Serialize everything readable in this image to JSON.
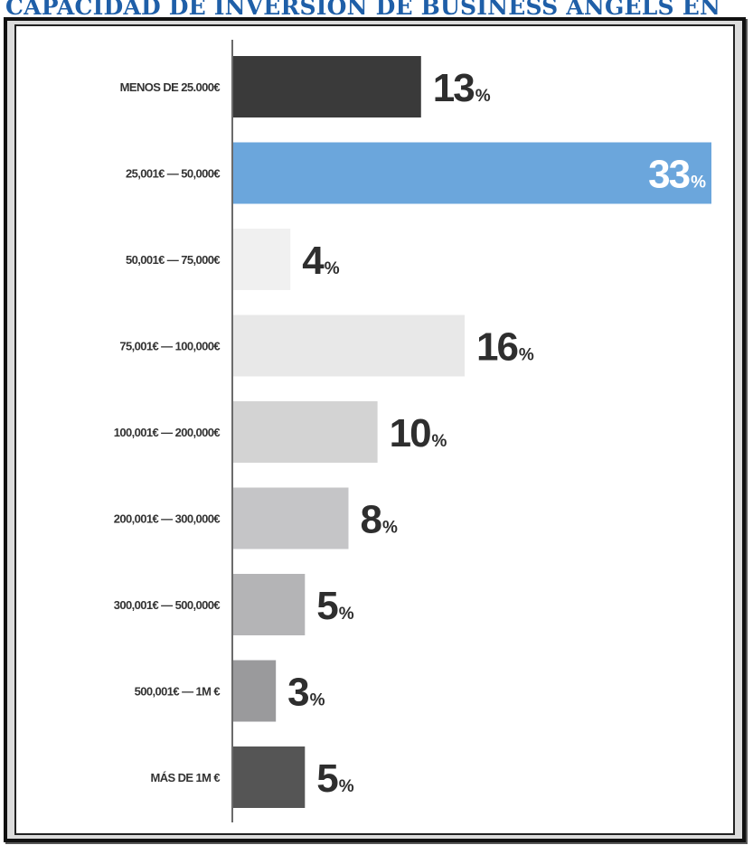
{
  "title": "CAPACIDAD DE INVERSIÓN DE BUSINESS ANGELS EN",
  "chart_data": {
    "type": "bar",
    "orientation": "horizontal",
    "unit": "%",
    "categories": [
      "MENOS DE 25.000€",
      "25,001€ — 50,000€",
      "50,001€ — 75,000€",
      "75,001€ — 100,000€",
      "100,001€ — 200,000€",
      "200,001€ — 300,000€",
      "300,001€ — 500,000€",
      "500,001€ — 1M €",
      "MÁS DE 1M €"
    ],
    "values": [
      13,
      33,
      4,
      16,
      10,
      8,
      5,
      3,
      5
    ],
    "bar_colors": [
      "#3a3a3a",
      "#6ba6dc",
      "#f0f0f0",
      "#e8e8e8",
      "#d3d3d3",
      "#c5c5c7",
      "#b4b4b6",
      "#9a9a9c",
      "#555555"
    ],
    "label_colors": [
      "#2e2e2e",
      "#ffffff",
      "#2e2e2e",
      "#2e2e2e",
      "#2e2e2e",
      "#2e2e2e",
      "#2e2e2e",
      "#2e2e2e",
      "#2e2e2e"
    ],
    "label_inside": [
      false,
      true,
      false,
      false,
      false,
      false,
      false,
      false,
      false
    ],
    "title": "CAPACIDAD DE INVERSIÓN DE BUSINESS ANGELS EN",
    "xlabel": "",
    "ylabel": "",
    "xlim": [
      0,
      33
    ],
    "grid": false,
    "legend": "none"
  }
}
